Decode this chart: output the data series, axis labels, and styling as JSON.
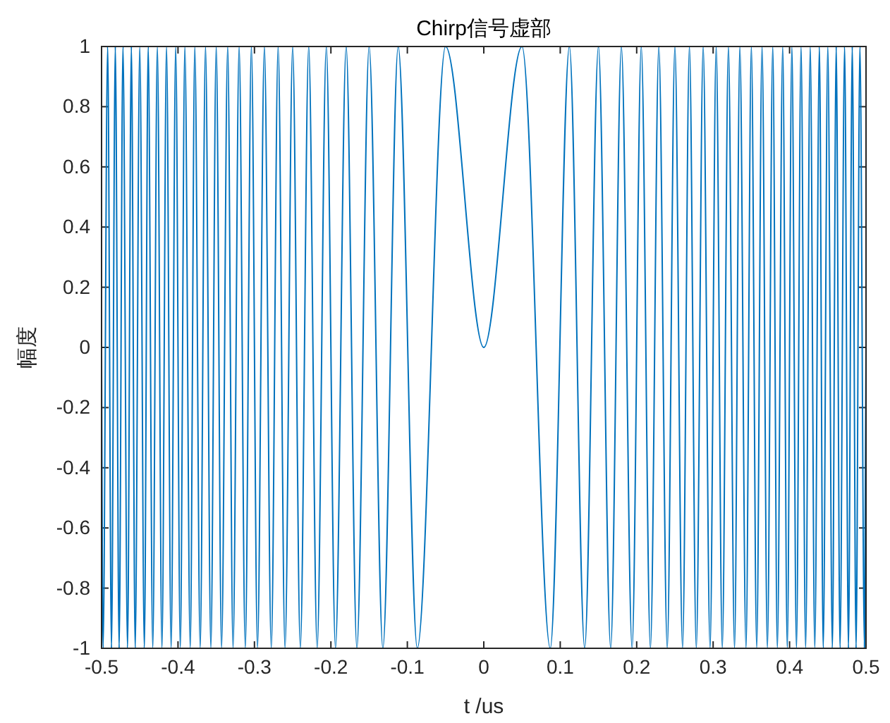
{
  "chart_data": {
    "type": "line",
    "title": "Chirp信号虚部",
    "xlabel": "t /us",
    "ylabel": "幅度",
    "xlim": [
      -0.5,
      0.5
    ],
    "xticks": [
      -0.5,
      -0.4,
      -0.3,
      -0.2,
      -0.1,
      0,
      0.1,
      0.2,
      0.3,
      0.4,
      0.5
    ],
    "ylim": [
      -1,
      1
    ],
    "yticks": [
      -1,
      -0.8,
      -0.6,
      -0.4,
      -0.2,
      0,
      0.2,
      0.4,
      0.6,
      0.8,
      1
    ],
    "grid": false,
    "marker": "none",
    "line_style": "solid",
    "series": [
      {
        "color": "#0072bd",
        "x": [
          -0.5,
          -0.498,
          -0.492,
          -0.487,
          -0.482,
          -0.477,
          -0.472,
          -0.466,
          -0.461,
          -0.456,
          -0.45,
          -0.444,
          -0.439,
          -0.433,
          -0.427,
          -0.421,
          -0.415,
          -0.409,
          -0.403,
          -0.397,
          -0.391,
          -0.384,
          -0.378,
          -0.371,
          -0.364,
          -0.357,
          -0.35,
          -0.343,
          -0.335,
          -0.328,
          -0.32,
          -0.312,
          -0.304,
          -0.296,
          -0.287,
          -0.278,
          -0.269,
          -0.26,
          -0.25,
          -0.24,
          -0.229,
          -0.218,
          -0.206,
          -0.194,
          -0.18,
          -0.166,
          -0.15,
          -0.132,
          -0.112,
          -0.087,
          -0.05,
          0,
          0.05,
          0.087,
          0.112,
          0.132,
          0.15,
          0.166,
          0.18,
          0.194,
          0.206,
          0.218,
          0.229,
          0.24,
          0.25,
          0.26,
          0.269,
          0.278,
          0.287,
          0.296,
          0.304,
          0.312,
          0.32,
          0.328,
          0.335,
          0.343,
          0.35,
          0.357,
          0.364,
          0.371,
          0.378,
          0.384,
          0.391,
          0.397,
          0.403,
          0.409,
          0.415,
          0.421,
          0.427,
          0.433,
          0.439,
          0.444,
          0.45,
          0.456,
          0.461,
          0.466,
          0.472,
          0.477,
          0.482,
          0.487,
          0.492,
          0.498,
          0.5
        ],
        "values": [
          0,
          -1,
          1,
          -1,
          1,
          -1,
          1,
          -1,
          1,
          -1,
          1,
          -1,
          1,
          -1,
          1,
          -1,
          1,
          -1,
          1,
          -1,
          1,
          -1,
          1,
          -1,
          1,
          -1,
          1,
          -1,
          1,
          -1,
          1,
          -1,
          1,
          -1,
          1,
          -1,
          1,
          -1,
          1,
          -1,
          1,
          -1,
          1,
          -1,
          1,
          -1,
          1,
          -1,
          1,
          -1,
          1,
          0,
          1,
          -1,
          1,
          -1,
          1,
          -1,
          1,
          -1,
          1,
          -1,
          1,
          -1,
          1,
          -1,
          1,
          -1,
          1,
          -1,
          1,
          -1,
          1,
          -1,
          1,
          -1,
          1,
          -1,
          1,
          -1,
          1,
          -1,
          1,
          -1,
          1,
          -1,
          1,
          -1,
          1,
          -1,
          1,
          -1,
          1,
          -1,
          1,
          -1,
          1,
          -1,
          1,
          -1,
          1,
          -1,
          0
        ]
      }
    ]
  }
}
